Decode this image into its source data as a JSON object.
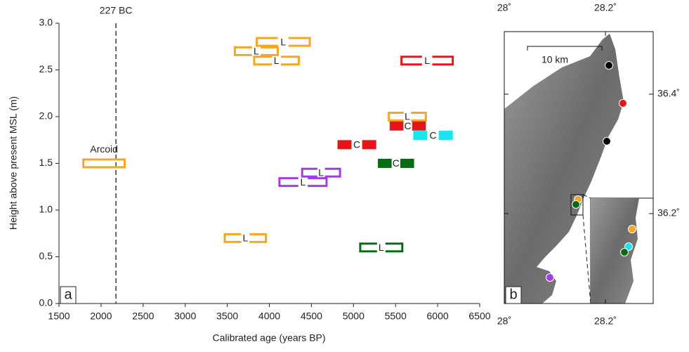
{
  "chart_data": {
    "type": "range-markers",
    "x_label": "Calibrated age (years BP)",
    "y_label": "Height above present MSL (m)",
    "panel": "a",
    "xlim": [
      1500,
      6500
    ],
    "xticks": [
      1500,
      2000,
      2500,
      3000,
      3500,
      4000,
      4500,
      5000,
      5500,
      6000,
      6500
    ],
    "ylim": [
      0,
      3
    ],
    "yticks": [
      {
        "value": 0,
        "label": "0.0"
      },
      0.5,
      {
        "value": 1,
        "label": "1.0"
      },
      1.5,
      {
        "value": 2,
        "label": "2.0"
      },
      2.5,
      {
        "value": 3,
        "label": "3.0"
      }
    ],
    "reference_line": {
      "x": 2177,
      "label": "227 BC"
    },
    "markers": [
      {
        "x": [
          3850,
          4480
        ],
        "y": 2.8,
        "color": "#f5a623",
        "kind": "open",
        "label": "L"
      },
      {
        "x": [
          3590,
          4100
        ],
        "y": 2.7,
        "color": "#f5a623",
        "kind": "open",
        "label": "L"
      },
      {
        "x": [
          3820,
          4350
        ],
        "y": 2.6,
        "color": "#f5a623",
        "kind": "open",
        "label": "L"
      },
      {
        "x": [
          5420,
          5860
        ],
        "y": 2.0,
        "color": "#f5a623",
        "kind": "open",
        "label": "L"
      },
      {
        "x": [
          3470,
          3960
        ],
        "y": 0.7,
        "color": "#f5a623",
        "kind": "open",
        "label": "L"
      },
      {
        "x": [
          1790,
          2280
        ],
        "y": 1.5,
        "color": "#f5a623",
        "kind": "box",
        "label": "Arcoid"
      },
      {
        "x": [
          5570,
          6180
        ],
        "y": 2.6,
        "color": "#e8141c",
        "kind": "open",
        "label": "L"
      },
      {
        "x": [
          5430,
          5860
        ],
        "y": 1.9,
        "color": "#e8141c",
        "kind": "filled",
        "label": "C"
      },
      {
        "x": [
          4810,
          5270
        ],
        "y": 1.7,
        "color": "#e8141c",
        "kind": "filled",
        "label": "C"
      },
      {
        "x": [
          5710,
          6180
        ],
        "y": 1.8,
        "color": "#19e6ec",
        "kind": "filled",
        "label": "C"
      },
      {
        "x": [
          5290,
          5720
        ],
        "y": 1.5,
        "color": "#0a6b16",
        "kind": "filled",
        "label": "C"
      },
      {
        "x": [
          5080,
          5580
        ],
        "y": 0.6,
        "color": "#0a6b16",
        "kind": "open",
        "label": "L"
      },
      {
        "x": [
          4390,
          4840
        ],
        "y": 1.4,
        "color": "#a23ee0",
        "kind": "open",
        "label": "L"
      },
      {
        "x": [
          4120,
          4680
        ],
        "y": 1.3,
        "color": "#a23ee0",
        "kind": "open",
        "label": "L"
      }
    ]
  },
  "map": {
    "panel": "b",
    "scale": "10 km",
    "top_labels": [
      "28˚",
      "28.2˚"
    ],
    "bottom_labels": [
      "28˚",
      "28.2˚"
    ],
    "right_labels": [
      "36.4˚",
      "36.2˚"
    ]
  }
}
